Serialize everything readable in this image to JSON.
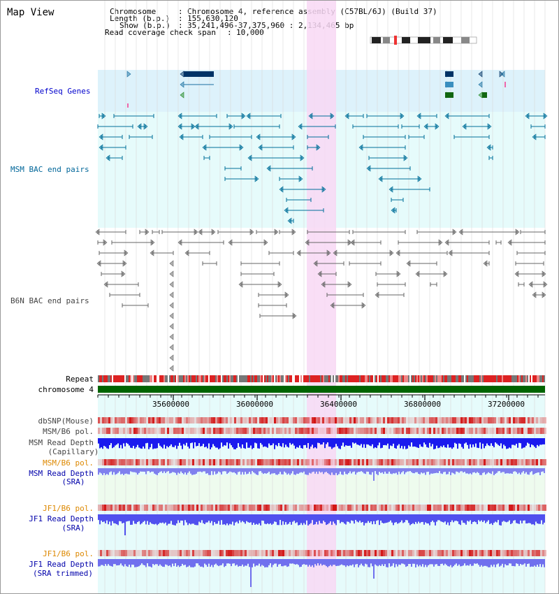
{
  "title": "Map View",
  "info": {
    "chromosome_label": "Chromosome",
    "chromosome_value": "Chromosome 4, reference assembly (C57BL/6J) (Build 37)",
    "length_label": "Length (b.p.)",
    "length_value": "155,630,120",
    "show_label": "Show (b.p.)",
    "show_value": "35,241,496-37,375,960 : 2,134,465 bp",
    "coverage_label": "Read coverage check span",
    "coverage_value": "10,000"
  },
  "tracks": {
    "refseq": "RefSeq Genes",
    "msm_bac": "MSM BAC end pairs",
    "b6n_bac": "B6N BAC end pairs",
    "repeat": "Repeat",
    "chromosome": "chromosome 4",
    "dbsnp": "dbSNP(Mouse)",
    "msm_b6_pol_1": "MSM/B6 pol.",
    "msm_read_depth_cap_1": "MSM Read Depth",
    "msm_read_depth_cap_2": "(Capillary)",
    "msm_b6_pol_2": "MSM/B6 pol.",
    "msm_read_depth_sra_1": "MSM Read Depth",
    "msm_read_depth_sra_2": "(SRA)",
    "jf1_b6_pol_1": "JF1/B6 pol.",
    "jf1_read_depth_sra_1": "JF1 Read Depth",
    "jf1_read_depth_sra_2": "(SRA)",
    "jf1_b6_pol_2": "JF1/B6 pol.",
    "jf1_read_depth_trim_1": "JF1 Read Depth",
    "jf1_read_depth_trim_2": "(SRA trimmed)"
  },
  "axis": {
    "ticks": [
      "35600000",
      "36000000",
      "36400000",
      "36800000",
      "37200000"
    ]
  },
  "colors": {
    "refseq_bg": "#ddf2fb",
    "msm_bg": "#e6fbfb",
    "highlight": "#f8d8f4",
    "msm_feature": "#006f99",
    "b6n_feature": "#777777",
    "chromosome_bar": "#006400",
    "repeat_red": "#dd2222",
    "depth_blue": "#0000ee",
    "depth_light": "#7777ff"
  }
}
